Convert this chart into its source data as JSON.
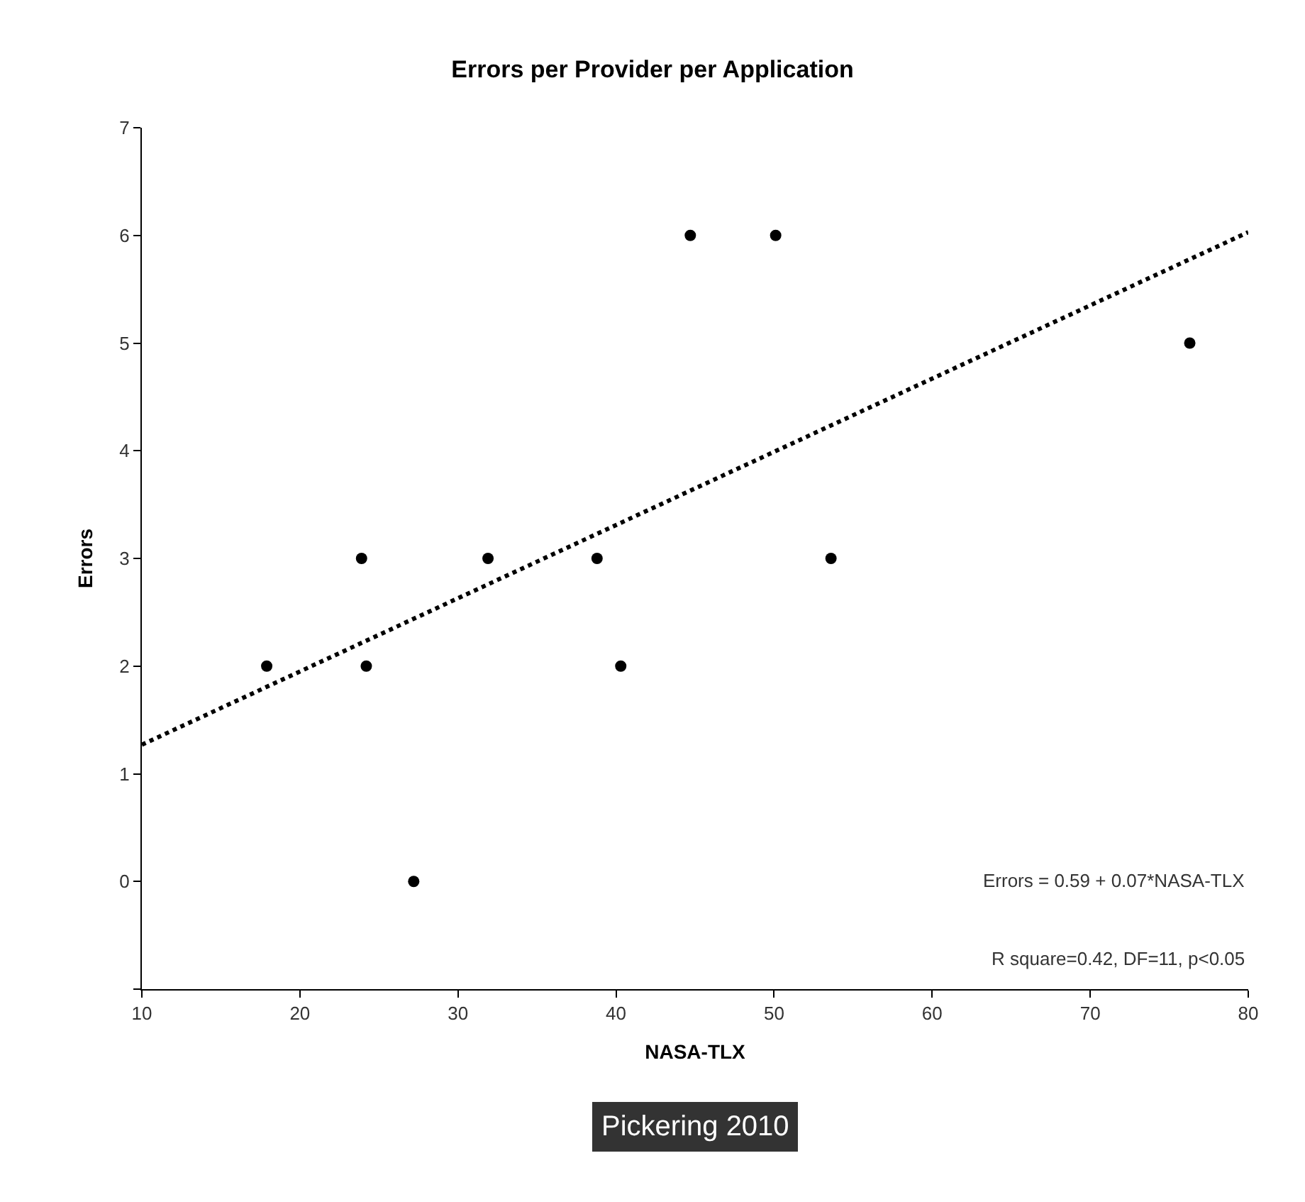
{
  "chart_data": {
    "type": "scatter",
    "title": "Errors per Provider per Application",
    "xlabel": "NASA-TLX",
    "ylabel": "Errors",
    "series": [
      {
        "color": "#000000",
        "marker": "circle",
        "x": [
          17.9,
          23.9,
          24.2,
          27.2,
          31.9,
          38.8,
          40.3,
          44.7,
          50.1,
          53.6,
          76.3
        ],
        "values": [
          2,
          3,
          2,
          0,
          3,
          3,
          2,
          6,
          6,
          3,
          5
        ]
      },
      {
        "type": "line",
        "color": "#000000",
        "line_style": "dotted",
        "x": [
          10,
          80
        ],
        "values": [
          1.27,
          6.03
        ]
      }
    ],
    "xlim": [
      10,
      80
    ],
    "xticks": [
      10,
      20,
      30,
      40,
      50,
      60,
      70,
      80
    ],
    "ylim": [
      -1,
      7
    ],
    "yticks": [
      {
        "value": -1,
        "label": null
      },
      0,
      1,
      2,
      3,
      4,
      5,
      6,
      7
    ],
    "annotations": [
      "Errors = 0.59 + 0.07*NASA-TLX",
      "R square=0.42, DF=11, p<0.05",
      "Pickering 2010"
    ]
  }
}
